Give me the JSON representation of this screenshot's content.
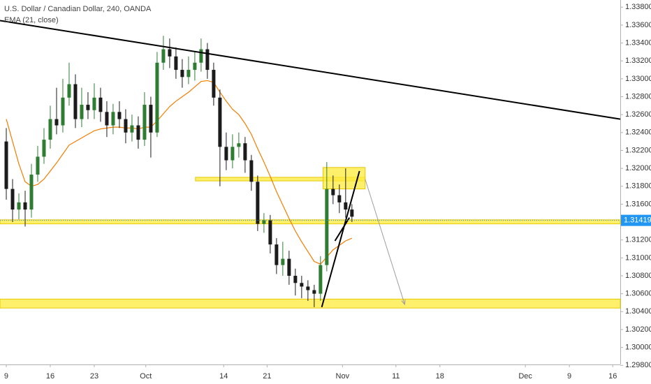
{
  "chart_data": {
    "type": "candlestick",
    "title": "U.S. Dollar / Canadian Dollar, 240, OANDA",
    "xlim": [
      -1,
      97.7
    ],
    "ylim": [
      1.2981,
      1.3388
    ],
    "xticks": [
      {
        "value": 0,
        "label": "9"
      },
      {
        "value": 7,
        "label": "16"
      },
      {
        "value": 14,
        "label": "23"
      },
      {
        "value": 22.2,
        "label": "Oct"
      },
      {
        "value": 34.6,
        "label": "14"
      },
      {
        "value": 41.5,
        "label": "21"
      },
      {
        "value": 53.5,
        "label": "Nov"
      },
      {
        "value": 62,
        "label": "11"
      },
      {
        "value": 69,
        "label": "18"
      },
      {
        "value": 82.6,
        "label": "Dec"
      },
      {
        "value": 89.6,
        "label": "9"
      },
      {
        "value": 96.5,
        "label": "16"
      }
    ],
    "yticks": [
      {
        "value": 1.298,
        "label": "1.29800"
      },
      {
        "value": 1.3,
        "label": "1.30000"
      },
      {
        "value": 1.302,
        "label": "1.30200"
      },
      {
        "value": 1.304,
        "label": "1.30400"
      },
      {
        "value": 1.306,
        "label": "1.30600"
      },
      {
        "value": 1.308,
        "label": "1.30800"
      },
      {
        "value": 1.31,
        "label": "1.31000"
      },
      {
        "value": 1.312,
        "label": "1.31200"
      },
      {
        "value": 1.314,
        "label": "1.31400"
      },
      {
        "value": 1.316,
        "label": "1.31600"
      },
      {
        "value": 1.318,
        "label": "1.31800"
      },
      {
        "value": 1.32,
        "label": "1.32000"
      },
      {
        "value": 1.322,
        "label": "1.32200"
      },
      {
        "value": 1.324,
        "label": "1.32400"
      },
      {
        "value": 1.326,
        "label": "1.32600"
      },
      {
        "value": 1.328,
        "label": "1.32800"
      },
      {
        "value": 1.33,
        "label": "1.33000"
      },
      {
        "value": 1.332,
        "label": "1.33200"
      },
      {
        "value": 1.334,
        "label": "1.33400"
      },
      {
        "value": 1.336,
        "label": "1.33600"
      },
      {
        "value": 1.338,
        "label": "1.33800"
      }
    ],
    "up_color": "#2e7d32",
    "down_color": "#1b1b1b",
    "x": [
      0,
      1,
      2,
      3,
      4,
      5,
      6,
      7,
      8,
      9,
      10,
      11,
      12,
      13,
      14,
      15,
      16,
      17,
      18,
      19,
      20,
      21,
      22,
      23,
      24,
      25,
      26,
      27,
      28,
      29,
      30,
      31,
      32,
      33,
      34,
      35,
      36,
      37,
      38,
      39,
      40,
      41,
      42,
      43,
      44,
      45,
      46,
      47,
      48,
      49,
      50,
      51,
      52,
      53,
      54,
      55
    ],
    "open": [
      1.323,
      1.3177,
      1.3154,
      1.3162,
      1.3154,
      1.3193,
      1.3213,
      1.3232,
      1.3255,
      1.3248,
      1.3279,
      1.3294,
      1.3255,
      1.3271,
      1.3265,
      1.3279,
      1.3263,
      1.3248,
      1.3263,
      1.3255,
      1.324,
      1.3248,
      1.3232,
      1.3271,
      1.324,
      1.3318,
      1.3333,
      1.3325,
      1.331,
      1.3302,
      1.331,
      1.3318,
      1.3333,
      1.331,
      1.3279,
      1.3224,
      1.3209,
      1.3224,
      1.3228,
      1.3209,
      1.3185,
      1.3138,
      1.3142,
      1.3115,
      1.3092,
      1.3099,
      1.308,
      1.3072,
      1.3068,
      1.3064,
      1.306,
      1.3092,
      1.3177,
      1.317,
      1.3162,
      1.3154
    ],
    "high": [
      1.3245,
      1.3188,
      1.3172,
      1.3175,
      1.3205,
      1.3225,
      1.3245,
      1.327,
      1.329,
      1.33,
      1.3318,
      1.3305,
      1.329,
      1.3285,
      1.3295,
      1.329,
      1.3275,
      1.3272,
      1.3275,
      1.3266,
      1.326,
      1.3258,
      1.3285,
      1.328,
      1.333,
      1.3348,
      1.3345,
      1.3335,
      1.3322,
      1.3325,
      1.333,
      1.3345,
      1.334,
      1.3318,
      1.3288,
      1.324,
      1.3238,
      1.324,
      1.3235,
      1.3215,
      1.3192,
      1.315,
      1.3148,
      1.3122,
      1.3118,
      1.3108,
      1.3088,
      1.308,
      1.3075,
      1.307,
      1.3102,
      1.3207,
      1.3192,
      1.3182,
      1.32,
      1.316
    ],
    "low": [
      1.3165,
      1.314,
      1.3143,
      1.3135,
      1.3145,
      1.3185,
      1.3205,
      1.3222,
      1.3238,
      1.324,
      1.327,
      1.3245,
      1.3246,
      1.3255,
      1.3255,
      1.3252,
      1.3235,
      1.3238,
      1.3245,
      1.3228,
      1.323,
      1.3222,
      1.3225,
      1.3212,
      1.3235,
      1.331,
      1.3312,
      1.33,
      1.329,
      1.3294,
      1.3298,
      1.3308,
      1.33,
      1.327,
      1.318,
      1.3198,
      1.32,
      1.3212,
      1.3195,
      1.3175,
      1.313,
      1.3128,
      1.3105,
      1.3082,
      1.308,
      1.307,
      1.3058,
      1.3055,
      1.3052,
      1.3045,
      1.3052,
      1.3085,
      1.316,
      1.315,
      1.3145,
      1.314
    ],
    "close": [
      1.3177,
      1.3154,
      1.3162,
      1.3154,
      1.3193,
      1.3213,
      1.3232,
      1.3255,
      1.3248,
      1.3279,
      1.3294,
      1.3255,
      1.3271,
      1.3265,
      1.3279,
      1.3263,
      1.3248,
      1.3263,
      1.3255,
      1.324,
      1.3248,
      1.3232,
      1.3271,
      1.324,
      1.3318,
      1.3333,
      1.3325,
      1.331,
      1.3302,
      1.331,
      1.3318,
      1.3333,
      1.331,
      1.3279,
      1.3224,
      1.3209,
      1.3224,
      1.3228,
      1.3209,
      1.3185,
      1.3138,
      1.3142,
      1.3115,
      1.3092,
      1.3099,
      1.308,
      1.3072,
      1.3068,
      1.3064,
      1.306,
      1.3092,
      1.3177,
      1.317,
      1.3162,
      1.3154,
      1.3146
    ],
    "ema": {
      "label": "EMA (21, close)",
      "color": "#f57c00",
      "values": [
        1.3255,
        1.323,
        1.3205,
        1.3185,
        1.318,
        1.3182,
        1.3188,
        1.3197,
        1.3206,
        1.3216,
        1.3226,
        1.323,
        1.3234,
        1.3238,
        1.3242,
        1.3244,
        1.3245,
        1.3246,
        1.3246,
        1.3245,
        1.3245,
        1.3244,
        1.3246,
        1.3246,
        1.3253,
        1.3261,
        1.3269,
        1.3275,
        1.328,
        1.3285,
        1.3291,
        1.3297,
        1.3298,
        1.3296,
        1.3285,
        1.3275,
        1.3266,
        1.326,
        1.325,
        1.3238,
        1.3222,
        1.3207,
        1.3191,
        1.3174,
        1.3159,
        1.3144,
        1.313,
        1.3118,
        1.3107,
        1.3096,
        1.3093,
        1.3101,
        1.3109,
        1.3114,
        1.3119,
        1.3122
      ]
    },
    "last_price": 1.31419,
    "last_price_color": "#2196f3",
    "zones": {
      "fill": "#ffeb3b",
      "stroke": "#e6c800",
      "items": [
        {
          "x": [
            30.1,
            57.1
          ],
          "y": [
            1.3186,
            1.319
          ]
        },
        {
          "x": [
            50.4,
            57.1
          ],
          "y": [
            1.3177,
            1.3201
          ]
        },
        {
          "x": [
            -1,
            97.7
          ],
          "y": [
            1.3138,
            1.31425
          ]
        },
        {
          "x": [
            -1,
            97.7
          ],
          "y": [
            1.3044,
            1.3054
          ]
        }
      ]
    },
    "trendlines": {
      "color": "#000000",
      "items": [
        {
          "x": [
            -1,
            97.7
          ],
          "y": [
            1.3365,
            1.3255
          ]
        },
        {
          "x": [
            50.2,
            56.2
          ],
          "y": [
            1.3045,
            1.3197
          ]
        },
        {
          "x": [
            52.3,
            54.6
          ],
          "y": [
            1.3119,
            1.3145
          ]
        }
      ]
    },
    "arrow": {
      "color": "#9e9e9e",
      "x": [
        57.1,
        63.4
      ],
      "y": [
        1.3188,
        1.3048
      ]
    }
  }
}
